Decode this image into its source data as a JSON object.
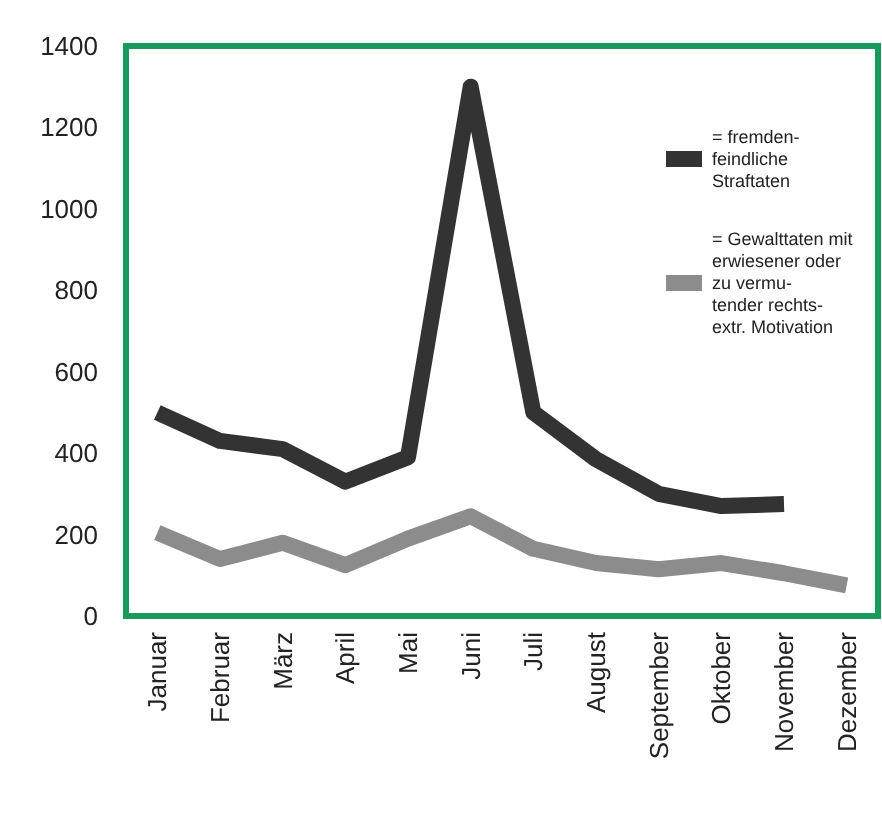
{
  "chart_data": {
    "type": "line",
    "categories": [
      "Januar",
      "Februar",
      "März",
      "April",
      "Mai",
      "Juni",
      "Juli",
      "August",
      "September",
      "Oktober",
      "November",
      "Dezember"
    ],
    "series": [
      {
        "name": "= fremden-feindliche Straftaten",
        "color": "#333333",
        "values": [
          500,
          430,
          410,
          330,
          390,
          1300,
          500,
          385,
          300,
          270,
          275,
          null
        ]
      },
      {
        "name": "= Gewalttaten mit erwiesener oder zu vermu-tender rechts-extr. Motivation",
        "color": "#8c8c8c",
        "values": [
          205,
          140,
          180,
          125,
          190,
          245,
          165,
          130,
          115,
          130,
          105,
          75
        ]
      }
    ],
    "ylim": [
      0,
      1400
    ],
    "yticks": [
      0,
      200,
      400,
      600,
      800,
      1000,
      1200,
      1400
    ],
    "grid": false,
    "legend": "top right",
    "marker": "none",
    "line_style": "solid"
  }
}
